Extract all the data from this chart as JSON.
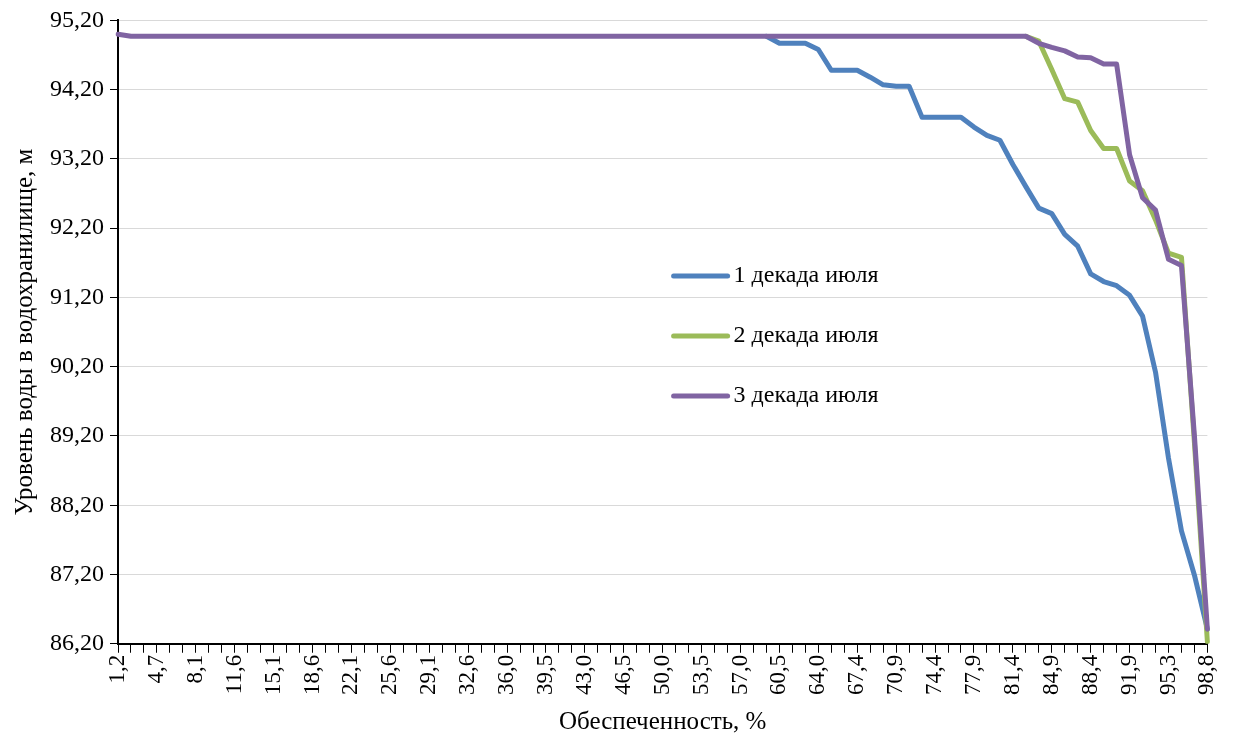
{
  "chart_data": {
    "type": "line",
    "xlabel": "Обеспеченность, %",
    "ylabel": "Уровень воды в водохранилище, м",
    "categories": [
      "1,2",
      null,
      null,
      "4,7",
      null,
      null,
      "8,1",
      null,
      null,
      "11,6",
      null,
      null,
      "15,1",
      null,
      null,
      "18,6",
      null,
      null,
      "22,1",
      null,
      null,
      "25,6",
      null,
      null,
      "29,1",
      null,
      null,
      "32,6",
      null,
      null,
      "36,0",
      null,
      null,
      "39,5",
      null,
      null,
      "43,0",
      null,
      null,
      "46,5",
      null,
      null,
      "50,0",
      null,
      null,
      "53,5",
      null,
      null,
      "57,0",
      null,
      null,
      "60,5",
      null,
      null,
      "64,0",
      null,
      null,
      "67,4",
      null,
      null,
      "70,9",
      null,
      null,
      "74,4",
      null,
      null,
      "77,9",
      null,
      null,
      "81,4",
      null,
      null,
      "84,9",
      null,
      null,
      "88,4",
      null,
      null,
      "91,9",
      null,
      null,
      "95,3",
      null,
      null,
      "98,8"
    ],
    "series": [
      {
        "name": "1 декада июля",
        "color": "#4f81bd",
        "values": [
          null,
          null,
          null,
          null,
          null,
          null,
          null,
          null,
          null,
          null,
          null,
          null,
          null,
          null,
          null,
          null,
          null,
          null,
          null,
          null,
          null,
          null,
          null,
          null,
          null,
          null,
          null,
          null,
          null,
          null,
          null,
          null,
          null,
          null,
          null,
          null,
          null,
          null,
          null,
          null,
          null,
          null,
          null,
          null,
          null,
          null,
          null,
          null,
          null,
          null,
          94.97,
          94.87,
          94.87,
          94.87,
          94.78,
          94.48,
          94.48,
          94.48,
          94.38,
          94.27,
          94.25,
          94.25,
          93.8,
          93.8,
          93.8,
          93.8,
          93.66,
          93.54,
          93.47,
          93.12,
          92.8,
          92.49,
          92.41,
          92.11,
          91.94,
          91.54,
          91.43,
          91.37,
          91.23,
          90.93,
          90.12,
          88.88,
          87.83,
          87.19,
          86.41
        ]
      },
      {
        "name": "2 декада июля",
        "color": "#9bbb59",
        "values": [
          null,
          null,
          null,
          null,
          null,
          null,
          null,
          null,
          null,
          null,
          null,
          null,
          null,
          null,
          null,
          null,
          null,
          null,
          null,
          null,
          null,
          null,
          null,
          null,
          null,
          null,
          null,
          null,
          null,
          null,
          null,
          null,
          null,
          null,
          null,
          null,
          null,
          null,
          null,
          null,
          null,
          null,
          null,
          null,
          null,
          null,
          null,
          null,
          null,
          null,
          null,
          null,
          null,
          null,
          null,
          null,
          null,
          null,
          null,
          null,
          null,
          null,
          null,
          null,
          null,
          null,
          null,
          null,
          null,
          null,
          94.97,
          94.9,
          94.49,
          94.07,
          94.02,
          93.61,
          93.35,
          93.35,
          92.88,
          92.74,
          92.32,
          91.84,
          91.78,
          89.1,
          86.23
        ]
      },
      {
        "name": "3 декада июля",
        "color": "#8064a2",
        "values": [
          95.0,
          94.97,
          94.97,
          94.97,
          94.97,
          94.97,
          94.97,
          94.97,
          94.97,
          94.97,
          94.97,
          94.97,
          94.97,
          94.97,
          94.97,
          94.97,
          94.97,
          94.97,
          94.97,
          94.97,
          94.97,
          94.97,
          94.97,
          94.97,
          94.97,
          94.97,
          94.97,
          94.97,
          94.97,
          94.97,
          94.97,
          94.97,
          94.97,
          94.97,
          94.97,
          94.97,
          94.97,
          94.97,
          94.97,
          94.97,
          94.97,
          94.97,
          94.97,
          94.97,
          94.97,
          94.97,
          94.97,
          94.97,
          94.97,
          94.97,
          94.97,
          94.97,
          94.97,
          94.97,
          94.97,
          94.97,
          94.97,
          94.97,
          94.97,
          94.97,
          94.97,
          94.97,
          94.97,
          94.97,
          94.97,
          94.97,
          94.97,
          94.97,
          94.97,
          94.97,
          94.97,
          94.87,
          94.81,
          94.76,
          94.67,
          94.66,
          94.57,
          94.57,
          93.26,
          92.64,
          92.46,
          91.75,
          91.66,
          89.2,
          86.41
        ]
      }
    ],
    "ylim": [
      86.2,
      95.2
    ],
    "yticks": [
      {
        "value": 86.2,
        "label": "86,20"
      },
      {
        "value": 87.2,
        "label": "87,20"
      },
      {
        "value": 88.2,
        "label": "88,20"
      },
      {
        "value": 89.2,
        "label": "89,20"
      },
      {
        "value": 90.2,
        "label": "90,20"
      },
      {
        "value": 91.2,
        "label": "91,20"
      },
      {
        "value": 92.2,
        "label": "92,20"
      },
      {
        "value": 93.2,
        "label": "93,20"
      },
      {
        "value": 94.2,
        "label": "94,20"
      },
      {
        "value": 95.2,
        "label": "95,20"
      }
    ],
    "grid": "y",
    "legend": "center",
    "marker": "none",
    "line_style": "solid"
  }
}
